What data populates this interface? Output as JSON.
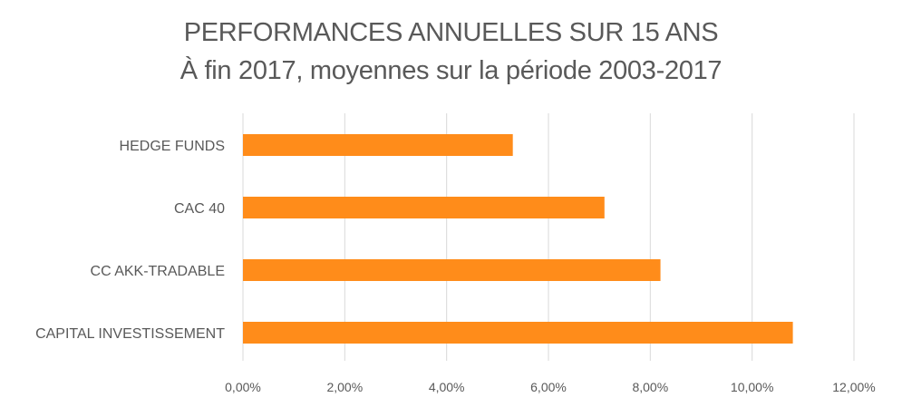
{
  "chart_data": {
    "type": "bar",
    "orientation": "horizontal",
    "title": "PERFORMANCES ANNUELLES SUR 15 ANS",
    "subtitle": "À fin 2017, moyennes sur la période 2003-2017",
    "categories": [
      "HEDGE FUNDS",
      "CAC 40",
      "CC AKK-TRADABLE",
      "CAPITAL INVESTISSEMENT"
    ],
    "values": [
      5.3,
      7.1,
      8.2,
      10.8
    ],
    "xlim": [
      0,
      12
    ],
    "x_ticks": [
      0,
      2,
      4,
      6,
      8,
      10,
      12
    ],
    "x_tick_labels": [
      "0,00%",
      "2,00%",
      "4,00%",
      "6,00%",
      "8,00%",
      "10,00%",
      "12,00%"
    ],
    "grid": "vertical",
    "bar_color": "#FF8C1A",
    "grid_color": "#D9D9D9",
    "text_color": "#595959"
  }
}
